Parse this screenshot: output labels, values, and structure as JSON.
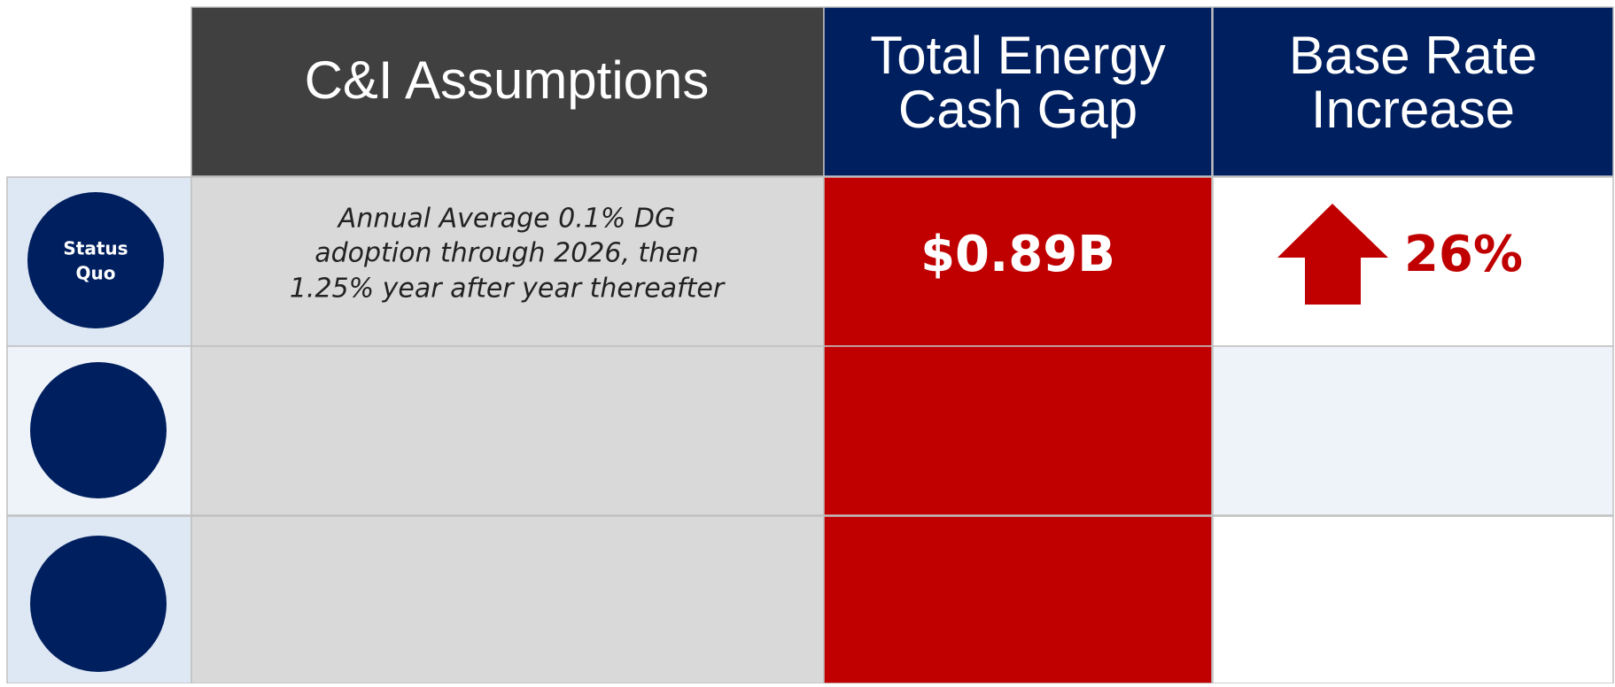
{
  "table": {
    "headers": [
      {
        "lines": [
          "C&I Assumptions"
        ]
      },
      {
        "lines": [
          "Total Energy",
          "Cash Gap"
        ]
      },
      {
        "lines": [
          "Base Rate",
          "Increase"
        ]
      }
    ],
    "rows": [
      {
        "label": [
          "Status",
          "Quo"
        ],
        "assumptions": [
          "Annual Average 0.1% DG",
          "adoption through 2026, then",
          "1.25% year after year thereafter"
        ],
        "cash_gap": "$0.89B",
        "rate_increase": "26%"
      }
    ]
  }
}
